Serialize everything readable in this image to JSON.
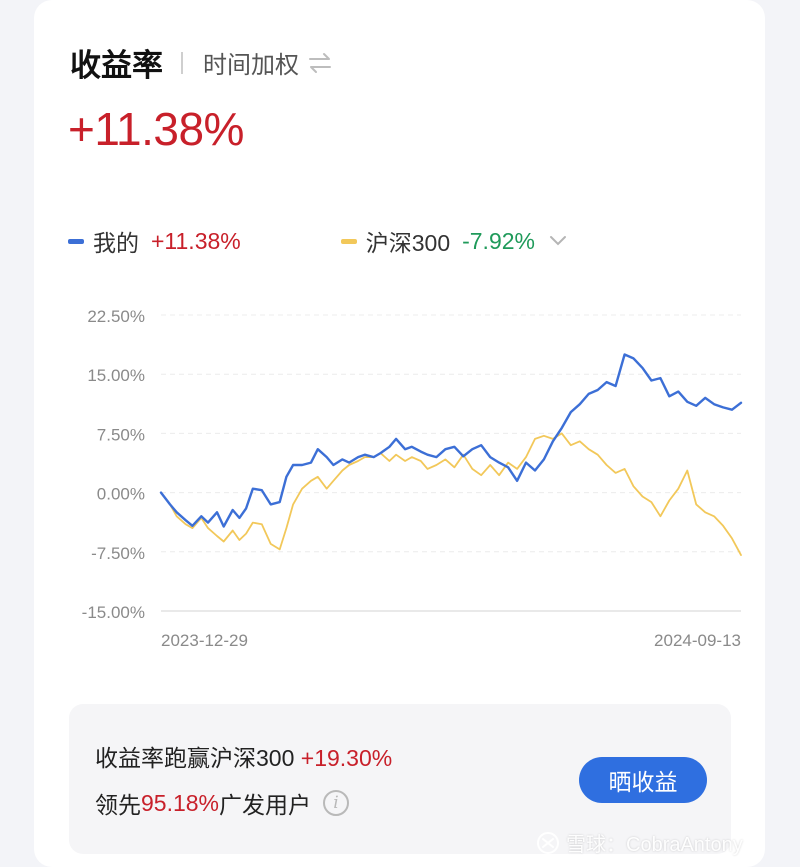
{
  "header": {
    "title": "收益率",
    "subtitle": "时间加权"
  },
  "headline_return": "+11.38%",
  "legend": [
    {
      "name": "我的",
      "value": "+11.38%",
      "color": "#3c6fd6"
    },
    {
      "name": "沪深300",
      "value": "-7.92%",
      "color": "#f2c85a"
    }
  ],
  "chart_data": {
    "type": "line",
    "y_ticks": [
      "22.50%",
      "15.00%",
      "7.50%",
      "0.00%",
      "-7.50%",
      "-15.00%"
    ],
    "ylim": [
      -15,
      22.5
    ],
    "x_labels": [
      "2023-12-29",
      "2024-09-13"
    ],
    "xlim": [
      "2023-12-29",
      "2024-09-13"
    ],
    "grid": true,
    "series": [
      {
        "name": "我的",
        "color": "#3c6fd6",
        "points": [
          [
            "2023-12-29",
            0.0
          ],
          [
            "2024-01-02",
            -1.5
          ],
          [
            "2024-01-05",
            -2.5
          ],
          [
            "2024-01-09",
            -3.5
          ],
          [
            "2024-01-12",
            -4.2
          ],
          [
            "2024-01-16",
            -3.0
          ],
          [
            "2024-01-19",
            -3.8
          ],
          [
            "2024-01-23",
            -2.5
          ],
          [
            "2024-01-26",
            -4.3
          ],
          [
            "2024-01-30",
            -2.2
          ],
          [
            "2024-02-02",
            -3.2
          ],
          [
            "2024-02-05",
            -2.0
          ],
          [
            "2024-02-08",
            0.5
          ],
          [
            "2024-02-12",
            0.3
          ],
          [
            "2024-02-16",
            -1.5
          ],
          [
            "2024-02-20",
            -1.2
          ],
          [
            "2024-02-23",
            2.0
          ],
          [
            "2024-02-26",
            3.5
          ],
          [
            "2024-03-01",
            3.5
          ],
          [
            "2024-03-05",
            3.8
          ],
          [
            "2024-03-08",
            5.5
          ],
          [
            "2024-03-12",
            4.5
          ],
          [
            "2024-03-15",
            3.5
          ],
          [
            "2024-03-19",
            4.2
          ],
          [
            "2024-03-22",
            3.8
          ],
          [
            "2024-03-26",
            4.5
          ],
          [
            "2024-03-29",
            4.8
          ],
          [
            "2024-04-02",
            4.5
          ],
          [
            "2024-04-05",
            5.0
          ],
          [
            "2024-04-09",
            5.8
          ],
          [
            "2024-04-12",
            6.8
          ],
          [
            "2024-04-16",
            5.5
          ],
          [
            "2024-04-19",
            5.8
          ],
          [
            "2024-04-23",
            5.2
          ],
          [
            "2024-04-26",
            4.8
          ],
          [
            "2024-04-30",
            4.5
          ],
          [
            "2024-05-04",
            5.5
          ],
          [
            "2024-05-08",
            5.8
          ],
          [
            "2024-05-12",
            4.6
          ],
          [
            "2024-05-16",
            5.5
          ],
          [
            "2024-05-20",
            6.0
          ],
          [
            "2024-05-24",
            4.5
          ],
          [
            "2024-05-28",
            3.8
          ],
          [
            "2024-06-01",
            3.2
          ],
          [
            "2024-06-05",
            1.5
          ],
          [
            "2024-06-09",
            3.8
          ],
          [
            "2024-06-13",
            2.8
          ],
          [
            "2024-06-17",
            4.2
          ],
          [
            "2024-06-21",
            6.5
          ],
          [
            "2024-06-25",
            8.2
          ],
          [
            "2024-06-29",
            10.2
          ],
          [
            "2024-07-03",
            11.2
          ],
          [
            "2024-07-07",
            12.5
          ],
          [
            "2024-07-11",
            13.0
          ],
          [
            "2024-07-15",
            14.0
          ],
          [
            "2024-07-19",
            13.5
          ],
          [
            "2024-07-23",
            17.5
          ],
          [
            "2024-07-27",
            17.0
          ],
          [
            "2024-07-31",
            15.8
          ],
          [
            "2024-08-04",
            14.2
          ],
          [
            "2024-08-08",
            14.5
          ],
          [
            "2024-08-12",
            12.2
          ],
          [
            "2024-08-16",
            12.8
          ],
          [
            "2024-08-20",
            11.5
          ],
          [
            "2024-08-24",
            11.0
          ],
          [
            "2024-08-28",
            12.0
          ],
          [
            "2024-09-01",
            11.2
          ],
          [
            "2024-09-05",
            10.8
          ],
          [
            "2024-09-09",
            10.5
          ],
          [
            "2024-09-13",
            11.38
          ]
        ]
      },
      {
        "name": "沪深300",
        "color": "#f2c85a",
        "points": [
          [
            "2023-12-29",
            0.0
          ],
          [
            "2024-01-02",
            -1.5
          ],
          [
            "2024-01-05",
            -3.0
          ],
          [
            "2024-01-09",
            -4.0
          ],
          [
            "2024-01-12",
            -4.5
          ],
          [
            "2024-01-16",
            -3.2
          ],
          [
            "2024-01-19",
            -4.5
          ],
          [
            "2024-01-23",
            -5.5
          ],
          [
            "2024-01-26",
            -6.2
          ],
          [
            "2024-01-30",
            -4.8
          ],
          [
            "2024-02-02",
            -6.0
          ],
          [
            "2024-02-05",
            -5.2
          ],
          [
            "2024-02-08",
            -3.8
          ],
          [
            "2024-02-12",
            -4.0
          ],
          [
            "2024-02-16",
            -6.5
          ],
          [
            "2024-02-20",
            -7.2
          ],
          [
            "2024-02-23",
            -4.5
          ],
          [
            "2024-02-26",
            -1.5
          ],
          [
            "2024-03-01",
            0.5
          ],
          [
            "2024-03-05",
            1.5
          ],
          [
            "2024-03-08",
            2.0
          ],
          [
            "2024-03-12",
            0.5
          ],
          [
            "2024-03-15",
            1.5
          ],
          [
            "2024-03-19",
            2.8
          ],
          [
            "2024-03-22",
            3.5
          ],
          [
            "2024-03-26",
            4.0
          ],
          [
            "2024-03-29",
            4.5
          ],
          [
            "2024-04-02",
            4.5
          ],
          [
            "2024-04-05",
            5.0
          ],
          [
            "2024-04-09",
            4.0
          ],
          [
            "2024-04-12",
            4.8
          ],
          [
            "2024-04-16",
            4.0
          ],
          [
            "2024-04-19",
            4.5
          ],
          [
            "2024-04-23",
            4.0
          ],
          [
            "2024-04-26",
            3.0
          ],
          [
            "2024-04-30",
            3.5
          ],
          [
            "2024-05-04",
            4.2
          ],
          [
            "2024-05-08",
            3.2
          ],
          [
            "2024-05-12",
            4.8
          ],
          [
            "2024-05-16",
            3.0
          ],
          [
            "2024-05-20",
            2.2
          ],
          [
            "2024-05-24",
            3.5
          ],
          [
            "2024-05-28",
            2.2
          ],
          [
            "2024-06-01",
            3.8
          ],
          [
            "2024-06-05",
            3.0
          ],
          [
            "2024-06-09",
            4.5
          ],
          [
            "2024-06-13",
            6.8
          ],
          [
            "2024-06-17",
            7.2
          ],
          [
            "2024-06-21",
            6.8
          ],
          [
            "2024-06-25",
            7.5
          ],
          [
            "2024-06-29",
            6.0
          ],
          [
            "2024-07-03",
            6.5
          ],
          [
            "2024-07-07",
            5.5
          ],
          [
            "2024-07-11",
            4.8
          ],
          [
            "2024-07-15",
            3.5
          ],
          [
            "2024-07-19",
            2.5
          ],
          [
            "2024-07-23",
            3.0
          ],
          [
            "2024-07-27",
            0.8
          ],
          [
            "2024-07-31",
            -0.5
          ],
          [
            "2024-08-04",
            -1.2
          ],
          [
            "2024-08-08",
            -3.0
          ],
          [
            "2024-08-12",
            -1.0
          ],
          [
            "2024-08-16",
            0.5
          ],
          [
            "2024-08-20",
            2.8
          ],
          [
            "2024-08-24",
            -1.5
          ],
          [
            "2024-08-28",
            -2.5
          ],
          [
            "2024-09-01",
            -3.0
          ],
          [
            "2024-09-05",
            -4.2
          ],
          [
            "2024-09-09",
            -5.8
          ],
          [
            "2024-09-13",
            -7.92
          ]
        ]
      }
    ]
  },
  "summary": {
    "line1_text": "收益率跑赢沪深300 ",
    "line1_value": "+19.30%",
    "line2_prefix": "领先 ",
    "line2_value": "95.18%",
    "line2_suffix": " 广发用户",
    "info_symbol": "i",
    "share_button": "晒收益"
  },
  "watermark": "雪球：CobraAntony"
}
